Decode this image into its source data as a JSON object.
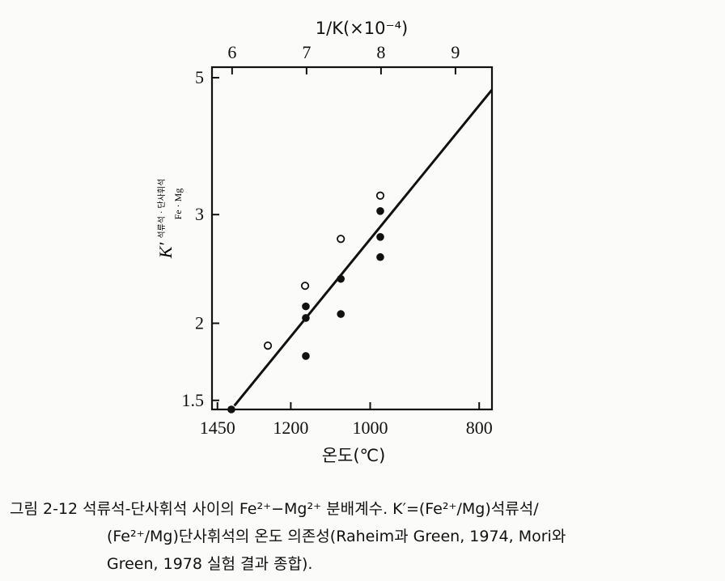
{
  "chart_data": {
    "type": "scatter",
    "top_axis_label": "1/K(×10⁻⁴)",
    "bottom_axis_label": "온도(℃)",
    "y_axis_label": {
      "main": "K′",
      "superscript": "석류석 · 단사휘석",
      "subscript": "Fe · Mg"
    },
    "x_top_ticks": [
      "6",
      "7",
      "8",
      "9"
    ],
    "x_top_range": [
      5.73,
      9.49
    ],
    "x_bottom_ticks": [
      "1450",
      "1200",
      "1000",
      "800"
    ],
    "y_scale": "log",
    "y_ticks": [
      "1.5",
      "2",
      "3",
      "5"
    ],
    "y_range": [
      1.45,
      5.2
    ],
    "grid": false,
    "series": [
      {
        "marker": "open-circle",
        "points": [
          {
            "x": 6.48,
            "y": 1.84
          },
          {
            "x": 6.98,
            "y": 2.3
          },
          {
            "x": 7.46,
            "y": 2.74
          },
          {
            "x": 7.99,
            "y": 3.22
          }
        ]
      },
      {
        "marker": "filled-circle",
        "points": [
          {
            "x": 5.99,
            "y": 1.45
          },
          {
            "x": 6.99,
            "y": 1.77
          },
          {
            "x": 6.99,
            "y": 2.04
          },
          {
            "x": 6.99,
            "y": 2.13
          },
          {
            "x": 7.46,
            "y": 2.07
          },
          {
            "x": 7.46,
            "y": 2.36
          },
          {
            "x": 7.99,
            "y": 2.56
          },
          {
            "x": 7.99,
            "y": 2.76
          },
          {
            "x": 7.99,
            "y": 3.04
          }
        ]
      }
    ],
    "fit_line": {
      "x": [
        6.03,
        9.49
      ],
      "y": [
        1.47,
        4.78
      ]
    }
  },
  "caption": {
    "line1": "그림 2-12  석류석-단사휘석 사이의 Fe²⁺−Mg²⁺ 분배계수. K′=(Fe²⁺/Mg)석류석/",
    "line2": "(Fe²⁺/Mg)단사휘석의 온도 의존성(Raheim과 Green, 1974, Mori와",
    "line3": "Green, 1978 실험 결과 종합)."
  }
}
